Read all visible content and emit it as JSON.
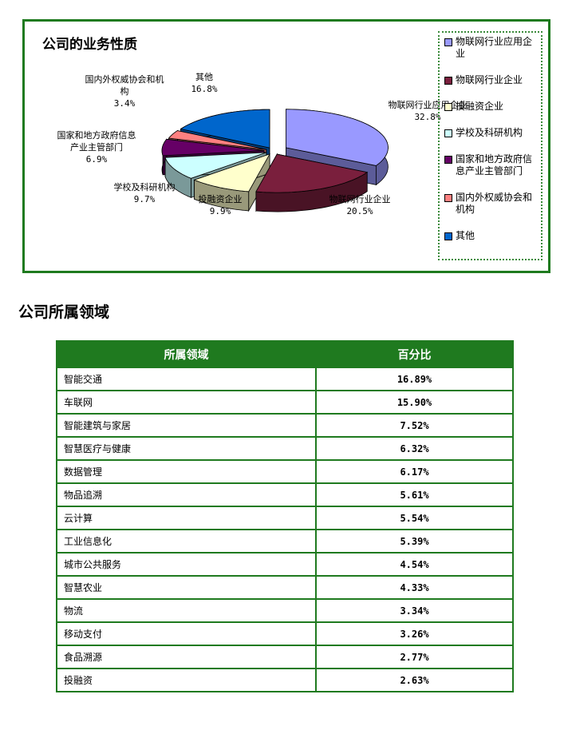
{
  "chart_data": {
    "type": "pie",
    "title": "公司的业务性质",
    "series": [
      {
        "name": "物联网行业应用企业",
        "label": "物联网行业应用企业",
        "value": 32.8,
        "display": "32.8%",
        "color": "#9999ff"
      },
      {
        "name": "物联网行业企业",
        "label": "物联网行业企业",
        "value": 20.5,
        "display": "20.5%",
        "color": "#7a1f3d"
      },
      {
        "name": "投融资企业",
        "label": "投融资企业",
        "value": 9.9,
        "display": "9.9%",
        "color": "#ffffcc"
      },
      {
        "name": "学校及科研机构",
        "label": "学校及科研机构",
        "value": 9.7,
        "display": "9.7%",
        "color": "#ccffff"
      },
      {
        "name": "国家和地方政府信息产业主管部门",
        "label": "国家和地方政府信息\n产业主管部门",
        "value": 6.9,
        "display": "6.9%",
        "color": "#660066"
      },
      {
        "name": "国内外权威协会和机构",
        "label": "国内外权威协会和机\n构",
        "value": 3.4,
        "display": "3.4%",
        "color": "#ff8080"
      },
      {
        "name": "其他",
        "label": "其他",
        "value": 16.8,
        "display": "16.8%",
        "color": "#0066cc"
      }
    ],
    "legend": {
      "placement": "right",
      "entries": [
        "物联网行业应用企业",
        "物联网行业企业",
        "投融资企业",
        "学校及科研机构",
        "国家和地方政府信息产业主管部门",
        "国内外权威协会和机构",
        "其他"
      ]
    }
  },
  "section": {
    "heading": "公司所属领域"
  },
  "table": {
    "headers": [
      "所属领域",
      "百分比"
    ],
    "rows": [
      {
        "field": "智能交通",
        "percent": "16.89%"
      },
      {
        "field": "车联网",
        "percent": "15.90%"
      },
      {
        "field": "智能建筑与家居",
        "percent": "7.52%"
      },
      {
        "field": "智慧医疗与健康",
        "percent": "6.32%"
      },
      {
        "field": "数据管理",
        "percent": "6.17%"
      },
      {
        "field": "物品追溯",
        "percent": "5.61%"
      },
      {
        "field": "云计算",
        "percent": "5.54%"
      },
      {
        "field": "工业信息化",
        "percent": "5.39%"
      },
      {
        "field": "城市公共服务",
        "percent": "4.54%"
      },
      {
        "field": "智慧农业",
        "percent": "4.33%"
      },
      {
        "field": "物流",
        "percent": "3.34%"
      },
      {
        "field": "移动支付",
        "percent": "3.26%"
      },
      {
        "field": "食品溯源",
        "percent": "2.77%"
      },
      {
        "field": "投融资",
        "percent": "2.63%"
      }
    ]
  }
}
